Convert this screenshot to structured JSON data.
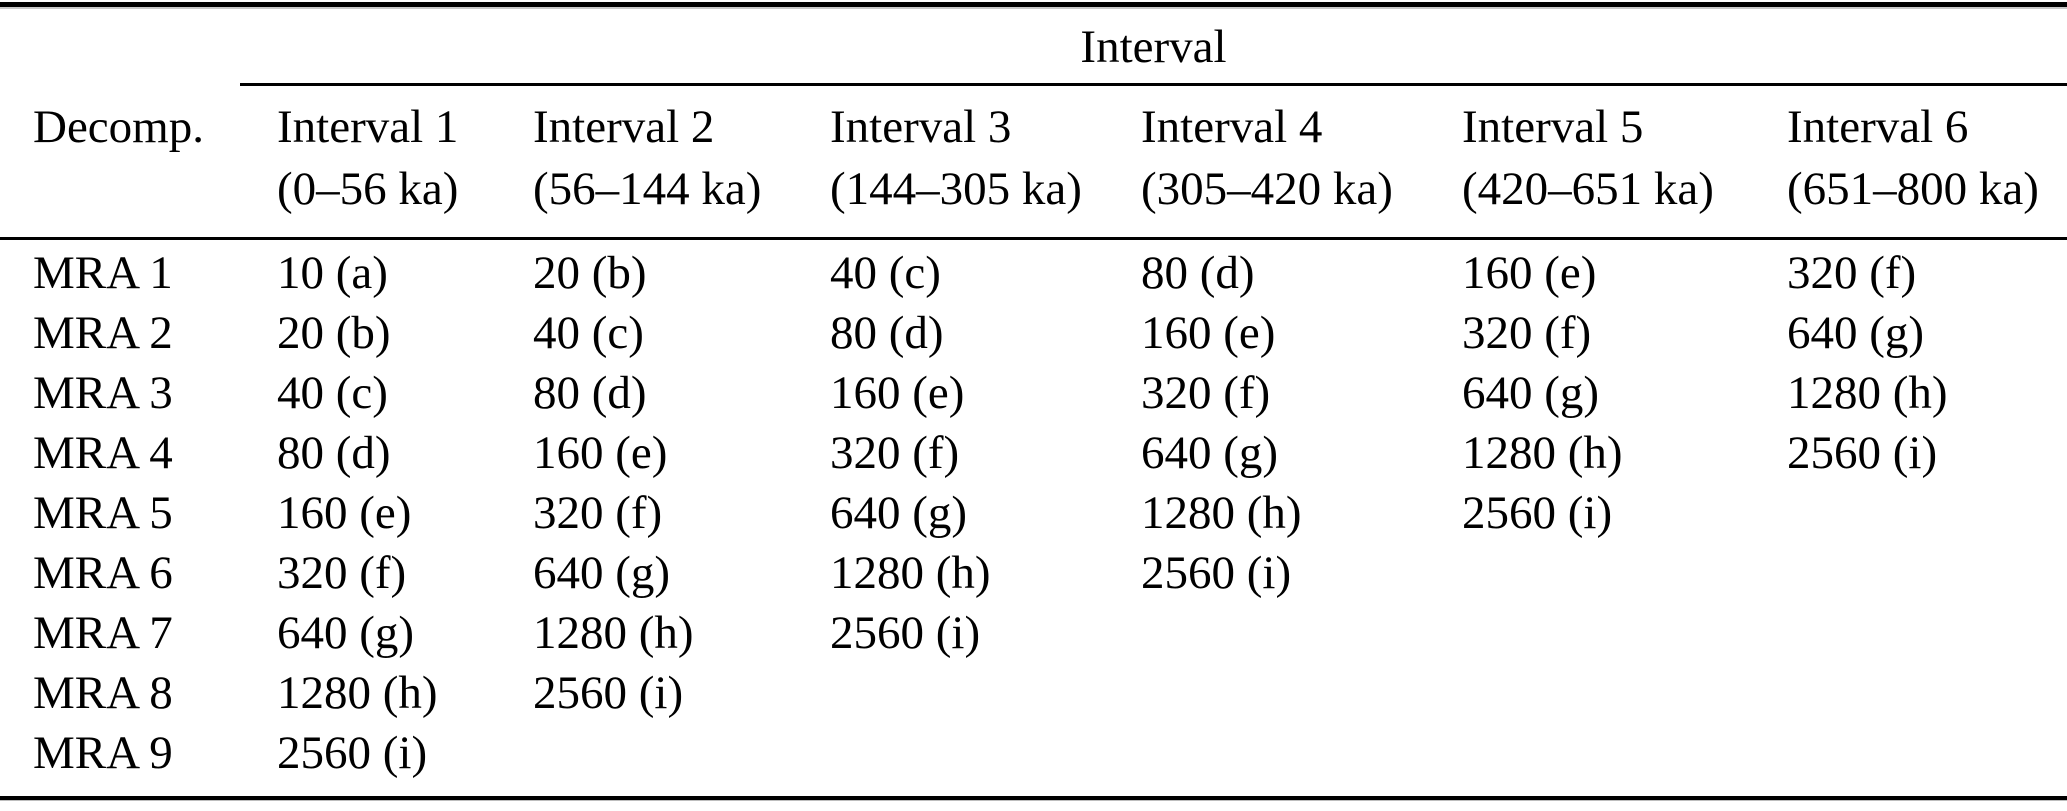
{
  "colors": {
    "text": "#000000",
    "background": "#ffffff",
    "rule": "#000000"
  },
  "table": {
    "span_header": "Interval",
    "decomp_header": "Decomp.",
    "columns": [
      {
        "name": "Interval 1",
        "range": "(0–56 ka)"
      },
      {
        "name": "Interval 2",
        "range": "(56–144 ka)"
      },
      {
        "name": "Interval 3",
        "range": "(144–305 ka)"
      },
      {
        "name": "Interval 4",
        "range": "(305–420 ka)"
      },
      {
        "name": "Interval 5",
        "range": "(420–651 ka)"
      },
      {
        "name": "Interval 6",
        "range": "(651–800 ka)"
      }
    ],
    "rows": [
      {
        "label": "MRA 1",
        "cells": [
          "10 (a)",
          "20 (b)",
          "40 (c)",
          "80 (d)",
          "160 (e)",
          "320 (f)"
        ]
      },
      {
        "label": "MRA 2",
        "cells": [
          "20 (b)",
          "40 (c)",
          "80 (d)",
          "160 (e)",
          "320 (f)",
          "640 (g)"
        ]
      },
      {
        "label": "MRA 3",
        "cells": [
          "40 (c)",
          "80 (d)",
          "160 (e)",
          "320 (f)",
          "640 (g)",
          "1280 (h)"
        ]
      },
      {
        "label": "MRA 4",
        "cells": [
          "80 (d)",
          "160 (e)",
          "320 (f)",
          "640 (g)",
          "1280 (h)",
          "2560 (i)"
        ]
      },
      {
        "label": "MRA 5",
        "cells": [
          "160 (e)",
          "320 (f)",
          "640 (g)",
          "1280 (h)",
          "2560 (i)",
          ""
        ]
      },
      {
        "label": "MRA 6",
        "cells": [
          "320 (f)",
          "640 (g)",
          "1280 (h)",
          "2560 (i)",
          "",
          ""
        ]
      },
      {
        "label": "MRA 7",
        "cells": [
          "640 (g)",
          "1280 (h)",
          "2560 (i)",
          "",
          "",
          ""
        ]
      },
      {
        "label": "MRA 8",
        "cells": [
          "1280 (h)",
          "2560 (i)",
          "",
          "",
          "",
          ""
        ]
      },
      {
        "label": "MRA 9",
        "cells": [
          "2560 (i)",
          "",
          "",
          "",
          "",
          ""
        ]
      }
    ]
  }
}
